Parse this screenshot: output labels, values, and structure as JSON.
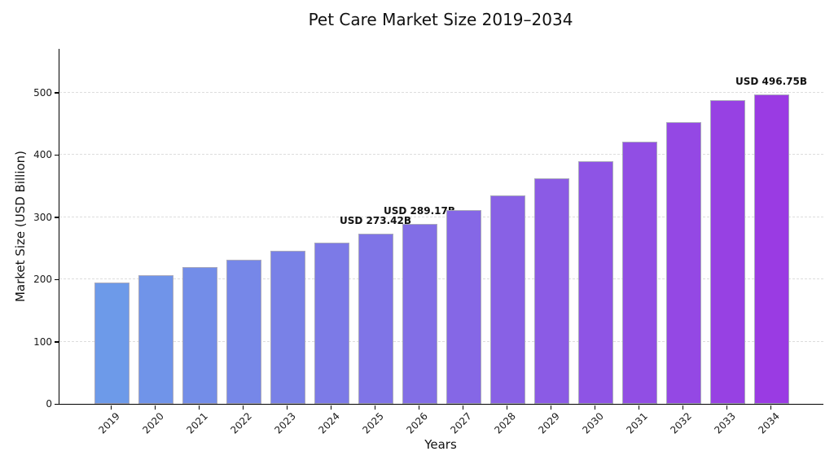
{
  "chart_data": {
    "type": "bar",
    "title": "Pet Care Market Size 2019–2034",
    "xlabel": "Years",
    "ylabel": "Market Size (USD Billion)",
    "categories": [
      "2019",
      "2020",
      "2021",
      "2022",
      "2023",
      "2024",
      "2025",
      "2026",
      "2027",
      "2028",
      "2029",
      "2030",
      "2031",
      "2032",
      "2033",
      "2034"
    ],
    "values": [
      195,
      206.5,
      219,
      232,
      245.5,
      259.5,
      273.42,
      289.17,
      311.5,
      335,
      362,
      389.5,
      421,
      452.5,
      487.5,
      496.75
    ],
    "ylim": [
      0,
      570
    ],
    "yticks": [
      0,
      100,
      200,
      300,
      400,
      500
    ],
    "grid": "horizontal-dashed",
    "legend": "none",
    "gridline_color": "#dddddd",
    "bar_edge_color": "#a9a9bc",
    "bar_colors": [
      "#6D9AE9",
      "#7094E9",
      "#738DE8",
      "#7687E8",
      "#7981E7",
      "#7C7AE7",
      "#7F74E7",
      "#826EE6",
      "#8567E6",
      "#8861E5",
      "#8B5BE5",
      "#8E54E5",
      "#914EE4",
      "#9448E4",
      "#9741E3",
      "#9A3BE3"
    ],
    "annotations": [
      {
        "year": "2025",
        "label": "USD 273.42B"
      },
      {
        "year": "2026",
        "label": "USD 289.17B"
      },
      {
        "year": "2034",
        "label": "USD 496.75B"
      }
    ]
  }
}
